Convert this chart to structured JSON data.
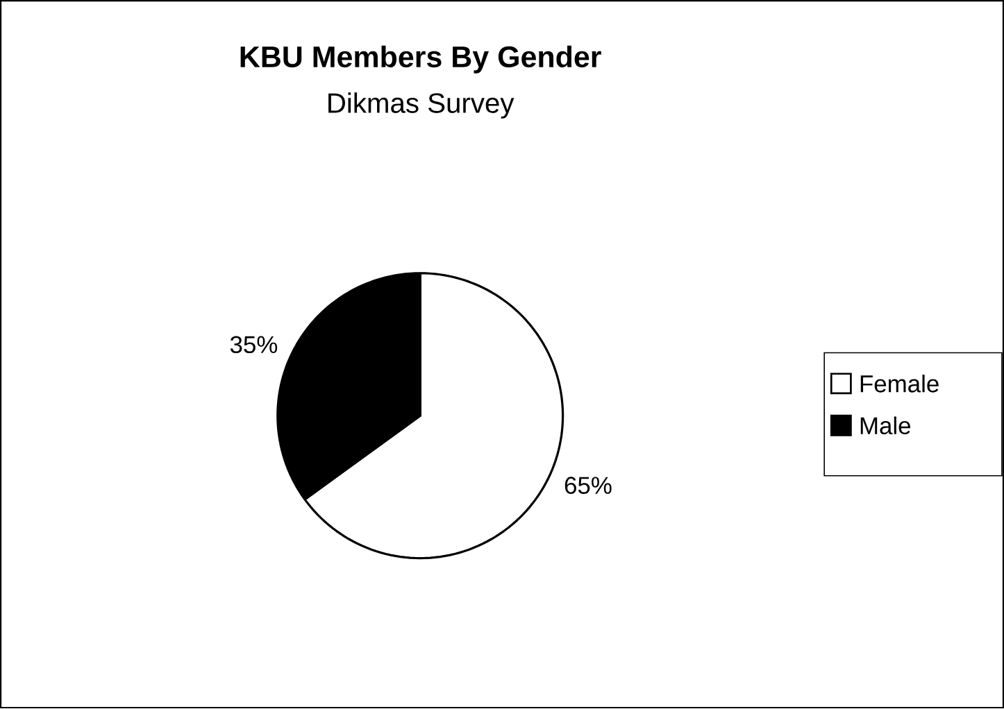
{
  "chart_data": {
    "type": "pie",
    "title": "KBU Members By Gender",
    "subtitle": "Dikmas Survey",
    "categories": [
      "Female",
      "Male"
    ],
    "values": [
      65,
      35
    ],
    "colors": [
      "#ffffff",
      "#000000"
    ],
    "value_labels": [
      "65%",
      "35%"
    ],
    "legend": "right"
  }
}
